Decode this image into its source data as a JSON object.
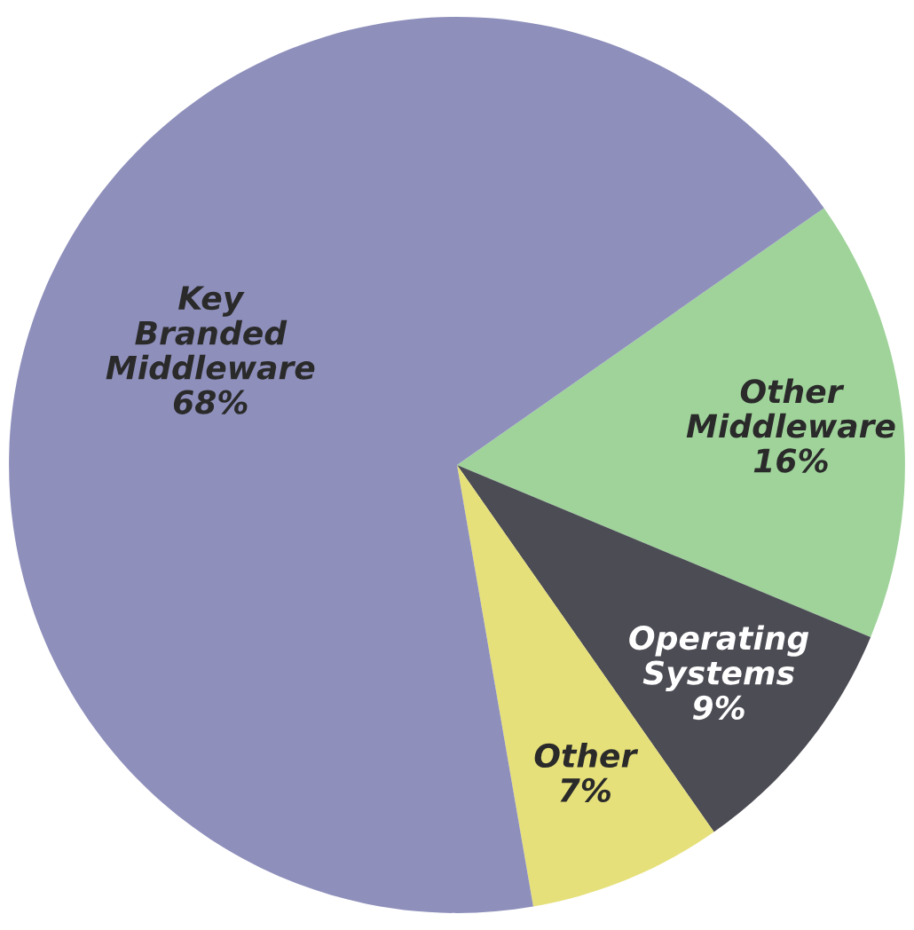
{
  "chart_data": {
    "type": "pie",
    "categories": [
      "Other Middleware",
      "Operating Systems",
      "Other",
      "Key Branded Middleware"
    ],
    "values": [
      16,
      9,
      7,
      68
    ],
    "value_labels": [
      "16%",
      "9%",
      "7%",
      "68%"
    ],
    "colors": [
      "#9fd39a",
      "#4c4c55",
      "#e6e07a",
      "#8e8fbb"
    ]
  }
}
